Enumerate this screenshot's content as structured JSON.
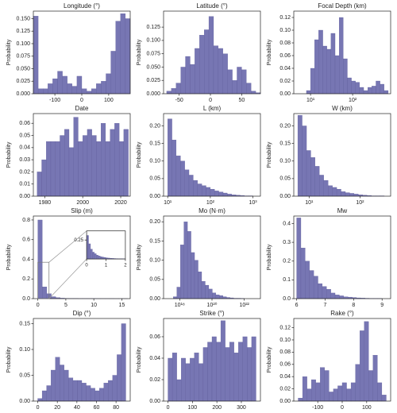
{
  "chart_data": [
    {
      "type": "histogram",
      "title": "Longitude (°)",
      "ylabel": "Probability",
      "color": "#7776b3",
      "bins": [
        -180,
        -162,
        -144,
        -126,
        -108,
        -90,
        -72,
        -54,
        -36,
        -18,
        0,
        18,
        36,
        54,
        72,
        90,
        108,
        126,
        144,
        162,
        180
      ],
      "values": [
        0.155,
        0.01,
        0.01,
        0.02,
        0.03,
        0.045,
        0.035,
        0.02,
        0.015,
        0.035,
        0.01,
        0.005,
        0.01,
        0.02,
        0.025,
        0.04,
        0.085,
        0.145,
        0.16,
        0.15
      ],
      "xlim": [
        -180,
        180
      ],
      "ylim": [
        0,
        0.165
      ],
      "xticks": [
        -100,
        0,
        100
      ],
      "yticks": [
        {
          "value": 0,
          "label": "0.000"
        },
        0.025,
        {
          "value": 0.05,
          "label": "0.050"
        },
        0.075,
        {
          "value": 0.1,
          "label": "0.100"
        },
        0.125,
        {
          "value": 0.15,
          "label": "0.150"
        }
      ]
    },
    {
      "type": "histogram",
      "title": "Latitude (°)",
      "ylabel": "Probability",
      "color": "#7776b3",
      "bins": [
        -70,
        -62.5,
        -55,
        -47.5,
        -40,
        -32.5,
        -25,
        -17.5,
        -10,
        -2.5,
        5,
        12.5,
        20,
        27.5,
        35,
        42.5,
        50,
        57.5,
        65,
        72.5,
        80
      ],
      "values": [
        0.005,
        0.01,
        0.02,
        0.05,
        0.07,
        0.055,
        0.085,
        0.11,
        0.12,
        0.145,
        0.09,
        0.085,
        0.075,
        0.045,
        0.025,
        0.05,
        0.045,
        0.02,
        0.005,
        0.002
      ],
      "xlim": [
        -75,
        80
      ],
      "ylim": [
        0,
        0.155
      ],
      "xticks": [
        -50,
        0,
        50
      ],
      "yticks": [
        {
          "value": 0,
          "label": "0.000"
        },
        0.025,
        {
          "value": 0.05,
          "label": "0.050"
        },
        0.075,
        {
          "value": 0.1,
          "label": "0.100"
        },
        0.125
      ]
    },
    {
      "type": "histogram",
      "title": "Focal Depth (km)",
      "ylabel": "Probability",
      "color": "#7776b3",
      "xscale": "log",
      "bins": [
        8,
        10,
        12.5,
        15.6,
        19.6,
        24.5,
        30.6,
        38.3,
        47.9,
        59.9,
        74.9,
        93.6,
        117,
        146,
        183,
        229,
        286,
        358,
        448,
        560,
        700
      ],
      "values": [
        0.005,
        0.04,
        0.085,
        0.1,
        0.075,
        0.07,
        0.095,
        0.06,
        0.12,
        0.055,
        0.025,
        0.02,
        0.018,
        0.01,
        0.005,
        0.01,
        0.012,
        0.02,
        0.015,
        0.005
      ],
      "xlim": [
        4,
        800
      ],
      "ylim": [
        0,
        0.13
      ],
      "xticks": [
        {
          "value": 10,
          "label": "10¹"
        },
        {
          "value": 100,
          "label": "10²"
        }
      ],
      "yticks": [
        {
          "value": 0,
          "label": "0.00"
        },
        0.02,
        0.04,
        0.06,
        0.08,
        {
          "value": 0.1,
          "label": "0.10"
        },
        0.12
      ]
    },
    {
      "type": "histogram",
      "title": "Date",
      "ylabel": "Probability",
      "color": "#7776b3",
      "bins": [
        1976,
        1978.4,
        1980.8,
        1983.2,
        1985.6,
        1988,
        1990.4,
        1992.8,
        1995.2,
        1997.6,
        2000,
        2002.4,
        2004.8,
        2007.2,
        2009.6,
        2012,
        2014.4,
        2016.8,
        2019.2,
        2021.6,
        2024
      ],
      "values": [
        0.02,
        0.03,
        0.045,
        0.045,
        0.045,
        0.05,
        0.055,
        0.04,
        0.065,
        0.045,
        0.05,
        0.055,
        0.05,
        0.045,
        0.06,
        0.045,
        0.055,
        0.06,
        0.045,
        0.055
      ],
      "xlim": [
        1974,
        2025
      ],
      "ylim": [
        0,
        0.068
      ],
      "xticks": [
        1980,
        2000,
        2020
      ],
      "yticks": [
        {
          "value": 0,
          "label": "0.00"
        },
        0.01,
        0.02,
        0.03,
        0.04,
        0.05,
        0.06
      ]
    },
    {
      "type": "histogram",
      "title": "L (km)",
      "ylabel": "Probability",
      "color": "#7776b3",
      "xscale": "log",
      "bins": [
        10,
        12.6,
        15.8,
        20,
        25.1,
        31.6,
        39.8,
        50.1,
        63.1,
        79.4,
        100,
        126,
        158,
        200,
        251,
        316,
        398,
        501,
        631,
        794,
        1000
      ],
      "values": [
        0.22,
        0.16,
        0.115,
        0.1,
        0.075,
        0.06,
        0.045,
        0.035,
        0.03,
        0.025,
        0.02,
        0.015,
        0.012,
        0.009,
        0.006,
        0.004,
        0.003,
        0.002,
        0.001,
        0.001
      ],
      "xlim": [
        8,
        1500
      ],
      "ylim": [
        0,
        0.235
      ],
      "xticks": [
        {
          "value": 10,
          "label": "10¹"
        },
        {
          "value": 100,
          "label": "10²"
        },
        {
          "value": 1000,
          "label": "10³"
        }
      ],
      "yticks": [
        {
          "value": 0,
          "label": "0.00"
        },
        0.05,
        {
          "value": 0.1,
          "label": "0.10"
        },
        0.15,
        {
          "value": 0.2,
          "label": "0.20"
        }
      ]
    },
    {
      "type": "histogram",
      "title": "W (km)",
      "ylabel": "Probability",
      "color": "#7776b3",
      "xscale": "log",
      "bins": [
        6,
        7.3,
        8.9,
        10.8,
        13.1,
        15.9,
        19.4,
        23.6,
        28.7,
        34.9,
        42.4,
        51.6,
        62.7,
        76.3,
        92.7,
        113,
        137,
        167,
        203,
        247,
        300
      ],
      "values": [
        0.23,
        0.2,
        0.13,
        0.11,
        0.085,
        0.06,
        0.045,
        0.03,
        0.025,
        0.02,
        0.013,
        0.01,
        0.008,
        0.006,
        0.004,
        0.003,
        0.002,
        0.001,
        0.001,
        0.001
      ],
      "xlim": [
        5,
        400
      ],
      "ylim": [
        0,
        0.235
      ],
      "xticks": [
        {
          "value": 10,
          "label": "10¹"
        },
        {
          "value": 100,
          "label": "10²"
        }
      ],
      "yticks": [
        {
          "value": 0,
          "label": "0.00"
        },
        0.05,
        {
          "value": 0.1,
          "label": "0.10"
        },
        0.15,
        {
          "value": 0.2,
          "label": "0.20"
        }
      ]
    },
    {
      "type": "histogram",
      "title": "Slip (m)",
      "ylabel": "Probability",
      "color": "#7776b3",
      "bins": [
        0,
        0.8,
        1.6,
        2.4,
        3.2,
        4,
        4.8,
        5.6,
        6.4,
        7.2,
        8,
        8.8,
        9.6,
        10.4,
        11.2,
        12,
        12.8,
        13.6,
        14.4,
        15.2,
        16
      ],
      "values": [
        0.8,
        0.12,
        0.05,
        0.02,
        0.01,
        0.005,
        0.003,
        0.002,
        0.002,
        0.001,
        0.001,
        0.001,
        0.001,
        0.0005,
        0.0005,
        0.0005,
        0.0005,
        0.0003,
        0.0003,
        0.0003
      ],
      "xlim": [
        -0.8,
        16.5
      ],
      "ylim": [
        0,
        0.84
      ],
      "xticks": [
        0,
        5,
        10,
        15
      ],
      "yticks": [
        {
          "value": 0,
          "label": "0.0"
        },
        0.2,
        0.4,
        0.6,
        0.8
      ],
      "inset": {
        "color": "#7776b3",
        "bins": [
          0,
          0.1,
          0.2,
          0.3,
          0.4,
          0.5,
          0.6,
          0.7,
          0.8,
          0.9,
          1,
          1.1,
          1.2,
          1.3,
          1.4,
          1.5,
          1.6,
          1.7,
          1.8,
          1.9,
          2
        ],
        "values": [
          0.31,
          0.2,
          0.13,
          0.09,
          0.07,
          0.05,
          0.04,
          0.03,
          0.025,
          0.02,
          0.015,
          0.012,
          0.01,
          0.008,
          0.006,
          0.005,
          0.004,
          0.003,
          0.003,
          0.002
        ],
        "xlim": [
          0,
          2
        ],
        "ylim": [
          0,
          0.37
        ],
        "xticks": [
          0,
          1,
          2
        ],
        "yticks": [
          0.25
        ]
      }
    },
    {
      "type": "histogram",
      "title": "Mo (N·m)",
      "ylabel": "Probability",
      "color": "#7776b3",
      "xscale": "log",
      "bins": [
        3.98e+17,
        6.61e+17,
        1.1e+18,
        1.82e+18,
        3.02e+18,
        5.01e+18,
        8.32e+18,
        1.38e+19,
        2.29e+19,
        3.8e+19,
        6.31e+19,
        1.05e+20,
        1.74e+20,
        2.88e+20,
        4.79e+20,
        7.94e+20,
        1.32e+21,
        2.19e+21,
        3.63e+21,
        6.03e+21,
        1e+22
      ],
      "values": [
        0.005,
        0.03,
        0.14,
        0.2,
        0.175,
        0.12,
        0.1,
        0.07,
        0.045,
        0.035,
        0.025,
        0.015,
        0.01,
        0.008,
        0.005,
        0.003,
        0.002,
        0.001,
        0.001,
        0.0005
      ],
      "xlim": [
        1e+17,
        1e+23
      ],
      "ylim": [
        0,
        0.215
      ],
      "xticks": [
        {
          "value": 1e+18,
          "label": "10¹⁸"
        },
        {
          "value": 1e+20,
          "label": "10²⁰"
        },
        {
          "value": 1e+22,
          "label": "10²²"
        }
      ],
      "yticks": [
        {
          "value": 0,
          "label": "0.00"
        },
        0.05,
        {
          "value": 0.1,
          "label": "0.10"
        },
        0.15,
        {
          "value": 0.2,
          "label": "0.20"
        }
      ]
    },
    {
      "type": "histogram",
      "title": "Mw",
      "ylabel": "Probability",
      "color": "#7776b3",
      "bins": [
        6,
        6.15,
        6.3,
        6.45,
        6.6,
        6.75,
        6.9,
        7.05,
        7.2,
        7.35,
        7.5,
        7.65,
        7.8,
        7.95,
        8.1,
        8.25,
        8.4,
        8.55,
        8.7,
        8.85,
        9
      ],
      "values": [
        0.43,
        0.27,
        0.2,
        0.15,
        0.12,
        0.08,
        0.065,
        0.05,
        0.03,
        0.02,
        0.015,
        0.01,
        0.008,
        0.006,
        0.004,
        0.003,
        0.002,
        0.001,
        0.001,
        0.001
      ],
      "xlim": [
        5.9,
        9.3
      ],
      "ylim": [
        0,
        0.44
      ],
      "xticks": [
        6,
        7,
        8,
        9
      ],
      "yticks": [
        {
          "value": 0,
          "label": "0.0"
        },
        0.1,
        0.2,
        0.3,
        0.4
      ]
    },
    {
      "type": "histogram",
      "title": "Dip (°)",
      "ylabel": "Probability",
      "color": "#7776b3",
      "bins": [
        0,
        4.5,
        9,
        13.5,
        18,
        22.5,
        27,
        31.5,
        36,
        40.5,
        45,
        49.5,
        54,
        58.5,
        63,
        67.5,
        72,
        76.5,
        81,
        85.5,
        90
      ],
      "values": [
        0.005,
        0.02,
        0.03,
        0.06,
        0.085,
        0.07,
        0.06,
        0.045,
        0.04,
        0.04,
        0.035,
        0.03,
        0.025,
        0.02,
        0.025,
        0.035,
        0.04,
        0.05,
        0.09,
        0.15
      ],
      "xlim": [
        -4.5,
        94.5
      ],
      "ylim": [
        0,
        0.16
      ],
      "xticks": [
        0,
        20,
        40,
        60,
        80
      ],
      "yticks": [
        {
          "value": 0,
          "label": "0.00"
        },
        0.05,
        {
          "value": 0.1,
          "label": "0.10"
        },
        0.15
      ]
    },
    {
      "type": "histogram",
      "title": "Strike (°)",
      "ylabel": "Probability",
      "color": "#7776b3",
      "bins": [
        0,
        18,
        36,
        54,
        72,
        90,
        108,
        126,
        144,
        162,
        180,
        198,
        216,
        234,
        252,
        270,
        288,
        306,
        324,
        342,
        360
      ],
      "values": [
        0.04,
        0.045,
        0.02,
        0.04,
        0.035,
        0.04,
        0.045,
        0.035,
        0.05,
        0.055,
        0.06,
        0.055,
        0.075,
        0.05,
        0.055,
        0.045,
        0.055,
        0.06,
        0.05,
        0.06
      ],
      "xlim": [
        -18,
        378
      ],
      "ylim": [
        0,
        0.077
      ],
      "xticks": [
        0,
        100,
        200,
        300
      ],
      "yticks": [
        {
          "value": 0,
          "label": "0.00"
        },
        0.02,
        0.04,
        0.06
      ]
    },
    {
      "type": "histogram",
      "title": "Rake (°)",
      "ylabel": "Probability",
      "color": "#7776b3",
      "bins": [
        -180,
        -162,
        -144,
        -126,
        -108,
        -90,
        -72,
        -54,
        -36,
        -18,
        0,
        18,
        36,
        54,
        72,
        90,
        108,
        126,
        144,
        162,
        180
      ],
      "values": [
        0.005,
        0.04,
        0.02,
        0.035,
        0.03,
        0.055,
        0.05,
        0.015,
        0.02,
        0.025,
        0.03,
        0.02,
        0.03,
        0.06,
        0.115,
        0.13,
        0.05,
        0.075,
        0.03,
        0.01
      ],
      "xlim": [
        -198,
        198
      ],
      "ylim": [
        0,
        0.135
      ],
      "xticks": [
        -100,
        0,
        100
      ],
      "yticks": [
        {
          "value": 0,
          "label": "0.00"
        },
        0.02,
        0.04,
        0.06,
        0.08,
        {
          "value": 0.1,
          "label": "0.10"
        },
        0.12
      ]
    }
  ]
}
